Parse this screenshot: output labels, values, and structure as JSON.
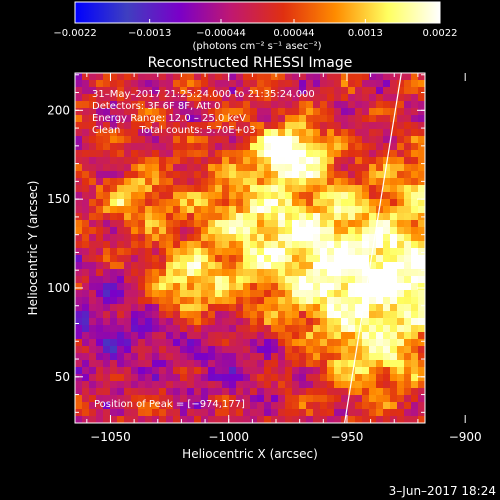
{
  "chart_data": {
    "type": "heatmap",
    "title": "Reconstructed RHESSI Image",
    "xlabel": "Heliocentric X (arcsec)",
    "ylabel": "Heliocentric Y (arcsec)",
    "xlim": [
      -1065,
      -917
    ],
    "ylim": [
      24,
      221
    ],
    "x_ticks": [
      -1050,
      -1000,
      -950,
      -900
    ],
    "x_tick_labels": [
      "−1050",
      "−1000",
      "−950",
      "−900"
    ],
    "y_ticks": [
      50,
      100,
      150,
      200
    ],
    "y_tick_labels": [
      "50",
      "100",
      "150",
      "200"
    ],
    "colorbar": {
      "range": [
        -0.0022,
        0.0022
      ],
      "tick_labels": [
        "−0.0022",
        "−0.0013",
        "−0.00044",
        "0.00044",
        "0.0013",
        "0.0022"
      ],
      "unit_text": "(photons cm⁻² s⁻¹ asec⁻²)",
      "colors": [
        "#0000ff",
        "#3f3fc0",
        "#7a00c8",
        "#c01870",
        "#e03010",
        "#ff8c00",
        "#ffff60",
        "#ffffff"
      ]
    },
    "annotations": [
      "31–May–2017 21:25:24.000 to 21:35:24.000",
      "Detectors: 3F 6F 8F, Att 0",
      "Energy Range: 12.0 – 25.0 keV",
      "Clean      Total counts: 5.70E+03"
    ],
    "peak_label": "Position of Peak = [−974,177]",
    "peak": [
      -974,
      177
    ],
    "limb": [
      [
        -927,
        221
      ],
      [
        -951,
        24
      ]
    ],
    "blobs": [
      {
        "x": -940,
        "y": 105,
        "amp": 0.0022,
        "s": 28
      },
      {
        "x": -974,
        "y": 177,
        "amp": 0.0022,
        "s": 10
      },
      {
        "x": -985,
        "y": 140,
        "amp": 0.0014,
        "s": 25
      },
      {
        "x": -1018,
        "y": 102,
        "amp": 0.0016,
        "s": 12
      },
      {
        "x": -1040,
        "y": 150,
        "amp": 0.0012,
        "s": 10
      },
      {
        "x": -910,
        "y": 160,
        "amp": 0.0013,
        "s": 14
      },
      {
        "x": -903,
        "y": 110,
        "amp": 0.0012,
        "s": 12
      },
      {
        "x": -938,
        "y": 58,
        "amp": 0.001,
        "s": 14
      },
      {
        "x": -1052,
        "y": 80,
        "amp": -0.0008,
        "s": 20
      },
      {
        "x": -1000,
        "y": 60,
        "amp": -0.0006,
        "s": 18
      }
    ]
  },
  "footer_date": "3–Jun–2017 18:24"
}
